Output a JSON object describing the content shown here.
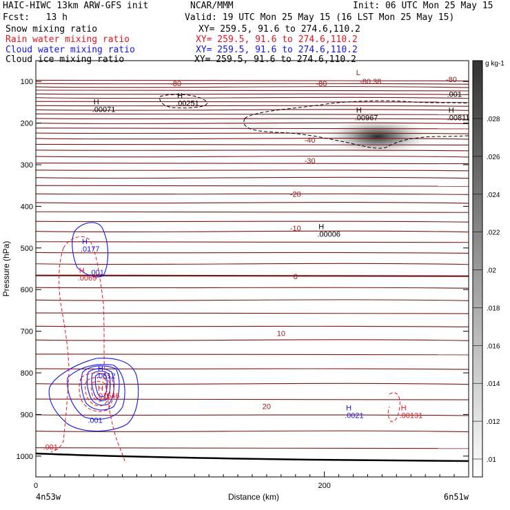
{
  "header": {
    "model": "HAIC-HIWC 13km ARW-GFS init",
    "center": "NCAR/MMM",
    "init": "Init: 06 UTC Mon 25 May 15",
    "fcst": "Fcst:   13 h",
    "valid": "Valid: 19 UTC Mon 25 May 15 (16 LST Mon 25 May 15)",
    "fields": [
      {
        "label": "Snow mixing ratio",
        "xy": "XY= 259.5, 91.6 to 274.6,110.2",
        "color": "#000000"
      },
      {
        "label": "Rain water mixing ratio",
        "xy": "XY= 259.5, 91.6 to 274.6,110.2",
        "color": "#e0141e"
      },
      {
        "label": "Cloud water mixing ratio",
        "xy": "XY= 259.5, 91.6 to 274.6,110.2",
        "color": "#1414e6"
      },
      {
        "label": "Cloud ice mixing ratio",
        "xy": "XY= 259.5, 91.6 to 274.6,110.2",
        "color": "#000000"
      }
    ]
  },
  "chart_data": {
    "type": "cross-section",
    "xlabel": "Distance (km)",
    "ylabel": "Pressure (hPa)",
    "xlim": [
      0,
      300
    ],
    "ylim_pressure": [
      50,
      1050
    ],
    "x_ticks": [
      "0",
      "200"
    ],
    "x_tick_values": [
      0,
      200
    ],
    "y_ticks": [
      100,
      200,
      300,
      400,
      500,
      600,
      700,
      800,
      900,
      1000
    ],
    "endpoints": {
      "left": "4n53w",
      "right": "6n51w"
    },
    "colorbar": {
      "units": "g kg-1",
      "labels": [
        ".028",
        ".026",
        ".024",
        ".022",
        ".02",
        ".018",
        ".016",
        ".014",
        ".012",
        ".01"
      ],
      "values": [
        0.028,
        0.026,
        0.024,
        0.022,
        0.02,
        0.018,
        0.016,
        0.014,
        0.012,
        0.01
      ]
    },
    "temperature_labels": [
      {
        "text": "-80",
        "x": 97,
        "p": 105
      },
      {
        "text": "-80",
        "x": 198,
        "p": 105
      },
      {
        "text": "-80.38",
        "x": 232,
        "p": 100
      },
      {
        "text": "-80",
        "x": 288,
        "p": 95
      },
      {
        "text": "-40",
        "x": 190,
        "p": 240
      },
      {
        "text": "-30",
        "x": 190,
        "p": 290
      },
      {
        "text": "-20",
        "x": 180,
        "p": 370
      },
      {
        "text": "-10",
        "x": 180,
        "p": 452
      },
      {
        "text": "0",
        "x": 180,
        "p": 568
      },
      {
        "text": "10",
        "x": 170,
        "p": 705
      },
      {
        "text": "20",
        "x": 160,
        "p": 880
      }
    ],
    "extrema": [
      {
        "type": "L",
        "value": "",
        "x": 222,
        "p": 85,
        "color": "#8b1a1a"
      },
      {
        "type": "H",
        "value": ".00071",
        "x": 40,
        "p": 155,
        "color": "#000000"
      },
      {
        "type": "H",
        "value": ".00251",
        "x": 98,
        "p": 140,
        "color": "#000000"
      },
      {
        "type": "H",
        "value": ".00967",
        "x": 222,
        "p": 175,
        "color": "#000000"
      },
      {
        "type": "H",
        "value": ".00811",
        "x": 286,
        "p": 175,
        "color": "#000000"
      },
      {
        "type": "H",
        "value": ".00006",
        "x": 196,
        "p": 455,
        "color": "#000000"
      },
      {
        "type": "H",
        "value": ".0177",
        "x": 32,
        "p": 490,
        "color": "#1414e6"
      },
      {
        "type": "H",
        "value": ".0069",
        "x": 30,
        "p": 560,
        "color": "#e0141e"
      },
      {
        "type": "H",
        "value": ".0612",
        "x": 43,
        "p": 795,
        "color": "#1414e6"
      },
      {
        "type": "H",
        "value": ".01546",
        "x": 43,
        "p": 843,
        "color": "#e0141e"
      },
      {
        "type": "H",
        "value": ".0021",
        "x": 215,
        "p": 890,
        "color": "#1414e6"
      },
      {
        "type": "H",
        "value": ".00131",
        "x": 253,
        "p": 890,
        "color": "#e0141e"
      }
    ],
    "contour_labels": [
      {
        "text": ".001",
        "x": 285,
        "p": 137,
        "color": "#000000"
      },
      {
        "text": ".001",
        "x": 37,
        "p": 565,
        "color": "#1414e6"
      },
      {
        "text": ".001",
        "x": 36,
        "p": 920,
        "color": "#1414e6"
      },
      {
        "text": ".001",
        "x": 5,
        "p": 985,
        "color": "#e0141e"
      }
    ],
    "snow_max": {
      "x": 240,
      "p": 230,
      "value": 0.028
    }
  }
}
